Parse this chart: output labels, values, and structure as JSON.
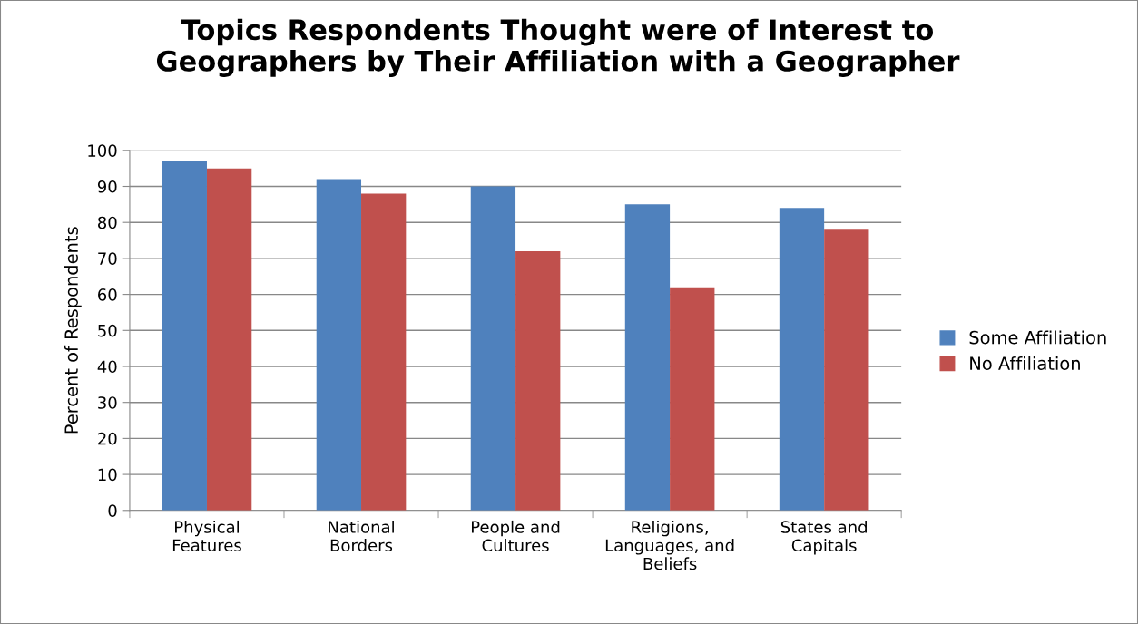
{
  "chart_data": {
    "type": "bar",
    "title": "Topics Respondents Thought were of Interest to\nGeographers by Their Affiliation with a Geographer",
    "ylabel": "Percent of Respondents",
    "categories": [
      "Physical\nFeatures",
      "National\nBorders",
      "People and\nCultures",
      "Religions,\nLanguages, and\nBeliefs",
      "States and\nCapitals"
    ],
    "series": [
      {
        "name": "Some Affiliation",
        "color": "#4f81bd",
        "values": [
          97,
          92,
          90,
          85,
          84
        ]
      },
      {
        "name": "No Affiliation",
        "color": "#c0504d",
        "values": [
          95,
          88,
          72,
          62,
          78
        ]
      }
    ],
    "ylim": [
      0,
      100
    ],
    "yticks": [
      0,
      10,
      20,
      30,
      40,
      50,
      60,
      70,
      80,
      90,
      100
    ],
    "grid": "y",
    "legend": "right"
  }
}
